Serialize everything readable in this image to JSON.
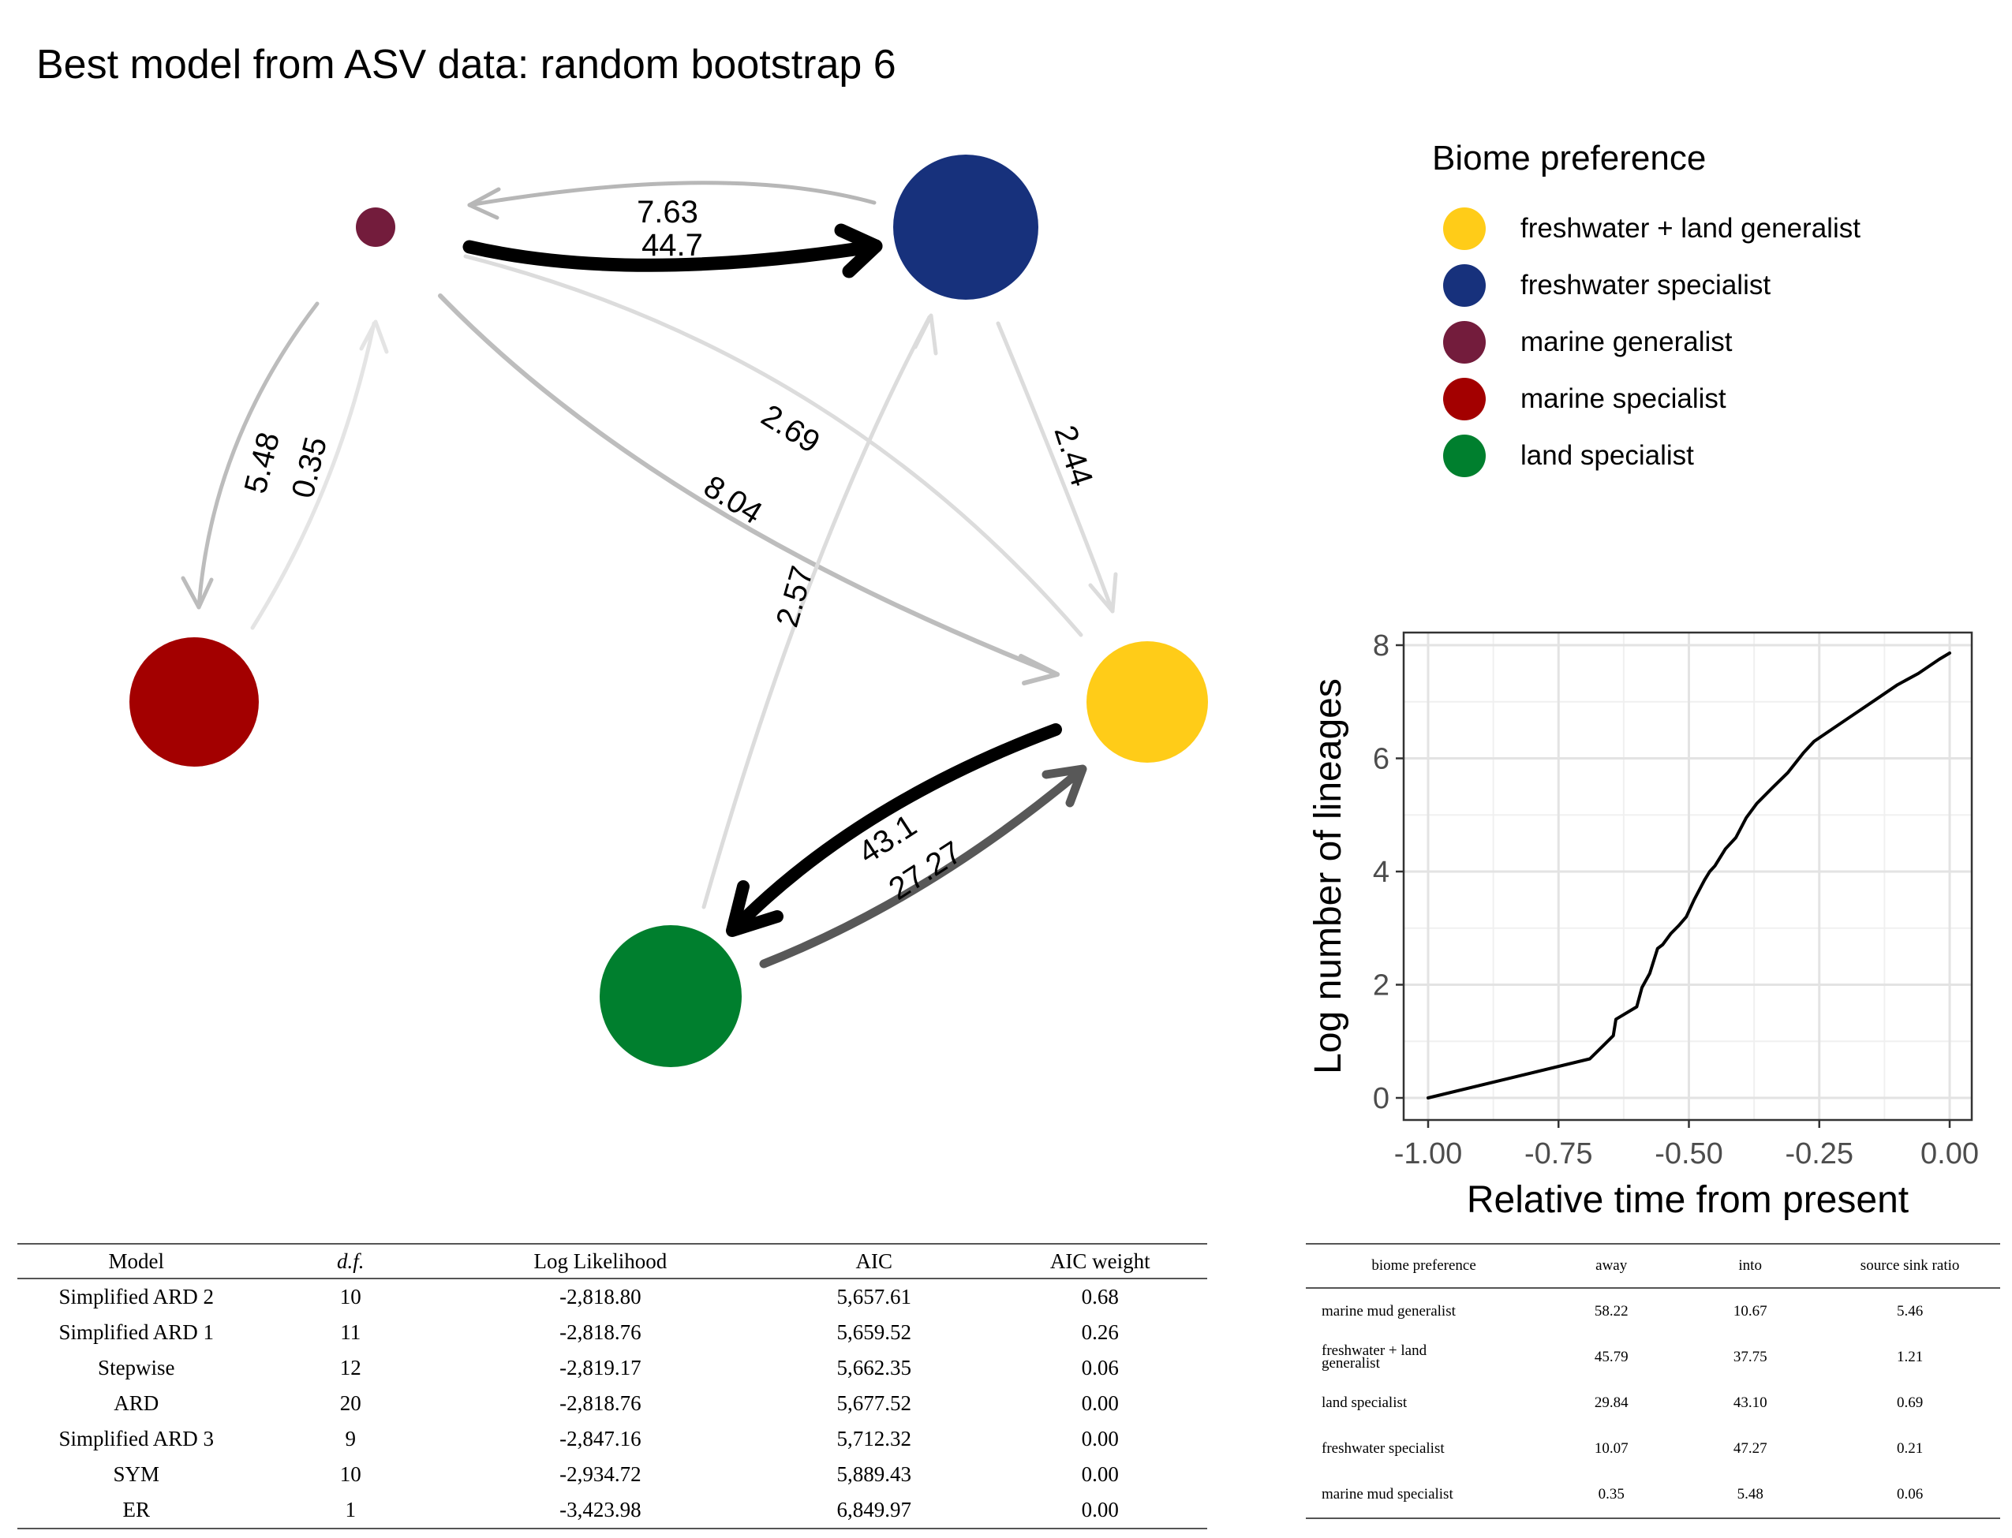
{
  "title": "Best model from ASV data: random bootstrap 6",
  "legend": {
    "title": "Biome preference",
    "items": [
      {
        "label": "freshwater + land generalist",
        "color": "#FFCC18"
      },
      {
        "label": "freshwater specialist",
        "color": "#17317C"
      },
      {
        "label": "marine generalist",
        "color": "#731C3C"
      },
      {
        "label": "marine specialist",
        "color": "#A30000"
      },
      {
        "label": "land specialist",
        "color": "#007F2E"
      }
    ]
  },
  "network": {
    "edge_labels": {
      "mg_to_fs": "44.7",
      "fs_to_mg": "7.63",
      "mg_to_ms": "5.48",
      "ms_to_mg": "0.35",
      "fl_to_mg": "2.69",
      "mg_to_fl": "8.04",
      "fs_to_fl": "2.44",
      "ls_to_fs": "2.57",
      "fl_to_ls": "43.1",
      "ls_to_fl": "27.27"
    }
  },
  "chart_data": {
    "type": "line",
    "xlabel": "Relative time from present",
    "ylabel": "Log number of lineages",
    "xlim": [
      -1.0,
      0.0
    ],
    "ylim": [
      0,
      8
    ],
    "x_ticks": [
      -1.0,
      -0.75,
      -0.5,
      -0.25,
      0.0
    ],
    "x_tick_labels": [
      "-1.00",
      "-0.75",
      "-0.50",
      "-0.25",
      "0.00"
    ],
    "y_ticks": [
      0,
      2,
      4,
      6,
      8
    ],
    "y_tick_labels": [
      "0",
      "2",
      "4",
      "6",
      "8"
    ],
    "grid": true,
    "x": [
      -1.0,
      -0.69,
      -0.645,
      -0.64,
      -0.6,
      -0.59,
      -0.575,
      -0.56,
      -0.55,
      -0.535,
      -0.52,
      -0.505,
      -0.49,
      -0.47,
      -0.46,
      -0.45,
      -0.43,
      -0.41,
      -0.39,
      -0.37,
      -0.34,
      -0.31,
      -0.28,
      -0.26,
      -0.22,
      -0.18,
      -0.14,
      -0.1,
      -0.06,
      -0.02,
      0.0
    ],
    "y": [
      0.0,
      0.69,
      1.1,
      1.39,
      1.61,
      1.95,
      2.2,
      2.64,
      2.71,
      2.9,
      3.04,
      3.2,
      3.5,
      3.85,
      4.0,
      4.1,
      4.4,
      4.6,
      4.95,
      5.2,
      5.48,
      5.75,
      6.1,
      6.3,
      6.55,
      6.8,
      7.05,
      7.3,
      7.5,
      7.75,
      7.86
    ]
  },
  "model_table": {
    "headers": [
      "Model",
      "d.f.",
      "Log Likelihood",
      "AIC",
      "AIC weight"
    ],
    "rows": [
      [
        "Simplified ARD 2",
        "10",
        "-2,818.80",
        "5,657.61",
        "0.68"
      ],
      [
        "Simplified ARD 1",
        "11",
        "-2,818.76",
        "5,659.52",
        "0.26"
      ],
      [
        "Stepwise",
        "12",
        "-2,819.17",
        "5,662.35",
        "0.06"
      ],
      [
        "ARD",
        "20",
        "-2,818.76",
        "5,677.52",
        "0.00"
      ],
      [
        "Simplified ARD 3",
        "9",
        "-2,847.16",
        "5,712.32",
        "0.00"
      ],
      [
        "SYM",
        "10",
        "-2,934.72",
        "5,889.43",
        "0.00"
      ],
      [
        "ER",
        "1",
        "-3,423.98",
        "6,849.97",
        "0.00"
      ]
    ]
  },
  "sink_table": {
    "headers": [
      "biome preference",
      "away",
      "into",
      "source sink ratio"
    ],
    "rows": [
      [
        "marine mud generalist",
        "58.22",
        "10.67",
        "5.46"
      ],
      [
        "freshwater + land generalist",
        "45.79",
        "37.75",
        "1.21"
      ],
      [
        "land specialist",
        "29.84",
        "43.10",
        "0.69"
      ],
      [
        "freshwater specialist",
        "10.07",
        "47.27",
        "0.21"
      ],
      [
        "marine mud specialist",
        "0.35",
        "5.48",
        "0.06"
      ]
    ]
  }
}
